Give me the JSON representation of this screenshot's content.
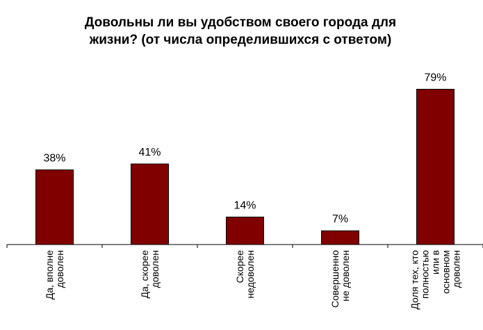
{
  "chart_data": {
    "type": "bar",
    "title": "Довольны ли вы удобством своего города для жизни? (от числа определившихся с ответом)",
    "title_lines": [
      "Довольны ли вы удобством своего города для",
      "жизни? (от числа определившихся с ответом)"
    ],
    "categories": [
      "Да, вполне доволен",
      "Да, скорее доволен",
      "Скорее недоволен",
      "Совершенно не доволен",
      "Доля тех, кто полностью или в основном доволен"
    ],
    "category_lines": [
      [
        "Да, вполне",
        "доволен"
      ],
      [
        "Да, скорее",
        "доволен"
      ],
      [
        "Скорее",
        "недоволен"
      ],
      [
        "Совершенно",
        "не доволен"
      ],
      [
        "Доля тех, кто",
        "полностью",
        "или в",
        "основном",
        "доволен"
      ]
    ],
    "values": [
      38,
      41,
      14,
      7,
      79
    ],
    "data_labels": [
      "38%",
      "41%",
      "14%",
      "7%",
      "79%"
    ],
    "ylim": [
      0,
      100
    ],
    "bar_color": "#800000",
    "grid": false,
    "legend": "none",
    "xlabel": "",
    "ylabel": ""
  }
}
